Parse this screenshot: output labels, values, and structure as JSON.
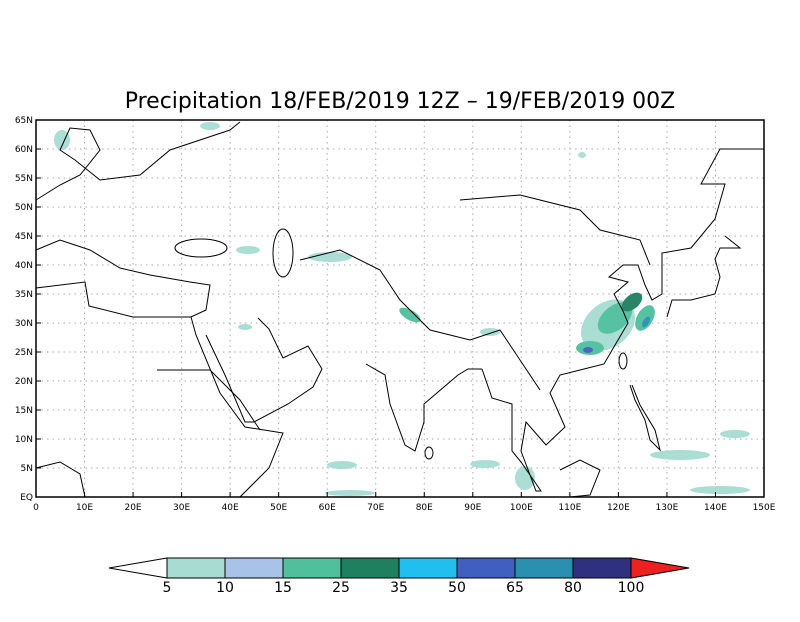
{
  "map": {
    "title": "Precipitation 18/FEB/2019 12Z – 19/FEB/2019 00Z",
    "lonlim": [
      0,
      150
    ],
    "latlim": [
      0,
      65
    ],
    "lon_ticks": [
      {
        "value": 0,
        "label": "0"
      },
      {
        "value": 10,
        "label": "10E"
      },
      {
        "value": 20,
        "label": "20E"
      },
      {
        "value": 30,
        "label": "30E"
      },
      {
        "value": 40,
        "label": "40E"
      },
      {
        "value": 50,
        "label": "50E"
      },
      {
        "value": 60,
        "label": "60E"
      },
      {
        "value": 70,
        "label": "70E"
      },
      {
        "value": 80,
        "label": "80E"
      },
      {
        "value": 90,
        "label": "90E"
      },
      {
        "value": 100,
        "label": "100E"
      },
      {
        "value": 110,
        "label": "110E"
      },
      {
        "value": 120,
        "label": "120E"
      },
      {
        "value": 130,
        "label": "130E"
      },
      {
        "value": 140,
        "label": "140E"
      },
      {
        "value": 150,
        "label": "150E"
      }
    ],
    "lat_ticks": [
      {
        "value": 0,
        "label": "EQ"
      },
      {
        "value": 5,
        "label": "5N"
      },
      {
        "value": 10,
        "label": "10N"
      },
      {
        "value": 15,
        "label": "15N"
      },
      {
        "value": 20,
        "label": "20N"
      },
      {
        "value": 25,
        "label": "25N"
      },
      {
        "value": 30,
        "label": "30N"
      },
      {
        "value": 35,
        "label": "35N"
      },
      {
        "value": 40,
        "label": "40N"
      },
      {
        "value": 45,
        "label": "45N"
      },
      {
        "value": 50,
        "label": "50N"
      },
      {
        "value": 55,
        "label": "55N"
      },
      {
        "value": 60,
        "label": "60N"
      },
      {
        "value": 65,
        "label": "65N"
      }
    ],
    "grid": true,
    "colorbar": {
      "levels": [
        5,
        10,
        15,
        25,
        35,
        50,
        65,
        80,
        100
      ],
      "colors": [
        "#ffffff",
        "#a6dcd2",
        "#a9c3e8",
        "#4fbf9c",
        "#1f7f5e",
        "#21bff0",
        "#3f60c0",
        "#2a8fb0",
        "#2f3080",
        "#ee2020"
      ]
    }
  }
}
